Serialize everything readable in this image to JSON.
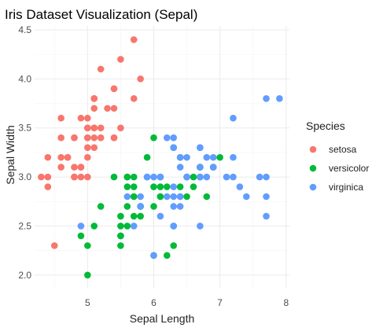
{
  "chart_data": {
    "type": "scatter",
    "title": "Iris Dataset Visualization (Sepal)",
    "xlabel": "Sepal Length",
    "ylabel": "Sepal Width",
    "xlim": [
      4.2,
      8.05
    ],
    "ylim": [
      1.87,
      4.54
    ],
    "x_ticks": [
      5,
      6,
      7,
      8
    ],
    "y_ticks": [
      2.0,
      2.5,
      3.0,
      3.5,
      4.0,
      4.5
    ],
    "y_tick_labels": [
      "2.0",
      "2.5",
      "3.0",
      "3.5",
      "4.0",
      "4.5"
    ],
    "x_tick_labels": [
      "5",
      "6",
      "7",
      "8"
    ],
    "grid": true,
    "legend": {
      "title": "Species",
      "placement": "right"
    },
    "series": [
      {
        "name": "setosa",
        "color": "#F8766D",
        "points": [
          [
            5.1,
            3.5
          ],
          [
            4.9,
            3.0
          ],
          [
            4.7,
            3.2
          ],
          [
            4.6,
            3.1
          ],
          [
            5.0,
            3.6
          ],
          [
            5.4,
            3.9
          ],
          [
            4.6,
            3.4
          ],
          [
            5.0,
            3.4
          ],
          [
            4.4,
            2.9
          ],
          [
            4.9,
            3.1
          ],
          [
            5.4,
            3.7
          ],
          [
            4.8,
            3.4
          ],
          [
            4.8,
            3.0
          ],
          [
            4.3,
            3.0
          ],
          [
            5.8,
            4.0
          ],
          [
            5.7,
            4.4
          ],
          [
            5.4,
            3.9
          ],
          [
            5.1,
            3.5
          ],
          [
            5.7,
            3.8
          ],
          [
            5.1,
            3.8
          ],
          [
            5.4,
            3.4
          ],
          [
            5.1,
            3.7
          ],
          [
            4.6,
            3.6
          ],
          [
            5.1,
            3.3
          ],
          [
            4.8,
            3.4
          ],
          [
            5.0,
            3.0
          ],
          [
            5.0,
            3.4
          ],
          [
            5.2,
            3.5
          ],
          [
            5.2,
            3.4
          ],
          [
            4.7,
            3.2
          ],
          [
            4.8,
            3.1
          ],
          [
            5.4,
            3.4
          ],
          [
            5.2,
            4.1
          ],
          [
            5.5,
            4.2
          ],
          [
            4.9,
            3.1
          ],
          [
            5.0,
            3.2
          ],
          [
            5.5,
            3.5
          ],
          [
            4.9,
            3.6
          ],
          [
            4.4,
            3.0
          ],
          [
            5.1,
            3.4
          ],
          [
            5.0,
            3.5
          ],
          [
            4.5,
            2.3
          ],
          [
            4.4,
            3.2
          ],
          [
            5.0,
            3.5
          ],
          [
            5.1,
            3.8
          ],
          [
            4.8,
            3.0
          ],
          [
            5.1,
            3.8
          ],
          [
            4.6,
            3.2
          ],
          [
            5.3,
            3.7
          ],
          [
            5.0,
            3.3
          ]
        ]
      },
      {
        "name": "versicolor",
        "color": "#00BA38",
        "points": [
          [
            7.0,
            3.2
          ],
          [
            6.4,
            3.2
          ],
          [
            6.9,
            3.1
          ],
          [
            5.5,
            2.3
          ],
          [
            6.5,
            2.8
          ],
          [
            5.7,
            2.8
          ],
          [
            6.3,
            3.3
          ],
          [
            4.9,
            2.4
          ],
          [
            6.6,
            2.9
          ],
          [
            5.2,
            2.7
          ],
          [
            5.0,
            2.0
          ],
          [
            5.9,
            3.0
          ],
          [
            6.0,
            2.2
          ],
          [
            6.1,
            2.9
          ],
          [
            5.6,
            2.9
          ],
          [
            6.7,
            3.1
          ],
          [
            5.6,
            3.0
          ],
          [
            5.8,
            2.7
          ],
          [
            6.2,
            2.2
          ],
          [
            5.6,
            2.5
          ],
          [
            5.9,
            3.2
          ],
          [
            6.1,
            2.8
          ],
          [
            6.3,
            2.5
          ],
          [
            6.1,
            2.8
          ],
          [
            6.4,
            2.9
          ],
          [
            6.6,
            3.0
          ],
          [
            6.8,
            2.8
          ],
          [
            6.7,
            3.0
          ],
          [
            6.0,
            2.9
          ],
          [
            5.7,
            2.6
          ],
          [
            5.5,
            2.4
          ],
          [
            5.5,
            2.4
          ],
          [
            5.8,
            2.7
          ],
          [
            6.0,
            2.7
          ],
          [
            5.4,
            3.0
          ],
          [
            6.0,
            3.4
          ],
          [
            6.7,
            3.1
          ],
          [
            6.3,
            2.3
          ],
          [
            5.6,
            3.0
          ],
          [
            5.5,
            2.5
          ],
          [
            5.5,
            2.6
          ],
          [
            6.1,
            3.0
          ],
          [
            5.8,
            2.6
          ],
          [
            5.0,
            2.3
          ],
          [
            5.6,
            2.7
          ],
          [
            5.7,
            3.0
          ],
          [
            5.7,
            2.9
          ],
          [
            6.2,
            2.9
          ],
          [
            5.1,
            2.5
          ],
          [
            5.7,
            2.8
          ]
        ]
      },
      {
        "name": "virginica",
        "color": "#619CFF",
        "points": [
          [
            6.3,
            3.3
          ],
          [
            5.8,
            2.7
          ],
          [
            7.1,
            3.0
          ],
          [
            6.3,
            2.9
          ],
          [
            6.5,
            3.0
          ],
          [
            7.6,
            3.0
          ],
          [
            4.9,
            2.5
          ],
          [
            7.3,
            2.9
          ],
          [
            6.7,
            2.5
          ],
          [
            7.2,
            3.6
          ],
          [
            6.5,
            3.2
          ],
          [
            6.4,
            2.7
          ],
          [
            6.8,
            3.0
          ],
          [
            5.7,
            2.5
          ],
          [
            5.8,
            2.8
          ],
          [
            6.4,
            3.2
          ],
          [
            6.5,
            3.0
          ],
          [
            7.7,
            3.8
          ],
          [
            7.7,
            2.6
          ],
          [
            6.0,
            2.2
          ],
          [
            6.9,
            3.2
          ],
          [
            5.6,
            2.8
          ],
          [
            7.7,
            2.8
          ],
          [
            6.3,
            2.7
          ],
          [
            6.7,
            3.3
          ],
          [
            7.2,
            3.2
          ],
          [
            6.2,
            2.8
          ],
          [
            6.1,
            3.0
          ],
          [
            6.4,
            2.8
          ],
          [
            7.2,
            3.0
          ],
          [
            7.4,
            2.8
          ],
          [
            7.9,
            3.8
          ],
          [
            6.4,
            2.8
          ],
          [
            6.3,
            2.8
          ],
          [
            6.1,
            2.6
          ],
          [
            7.7,
            3.0
          ],
          [
            6.3,
            3.4
          ],
          [
            6.4,
            3.1
          ],
          [
            6.0,
            3.0
          ],
          [
            6.9,
            3.1
          ],
          [
            6.7,
            3.1
          ],
          [
            6.9,
            3.1
          ],
          [
            5.8,
            2.7
          ],
          [
            6.8,
            3.2
          ],
          [
            6.7,
            3.3
          ],
          [
            6.7,
            3.0
          ],
          [
            6.3,
            2.5
          ],
          [
            6.5,
            3.0
          ],
          [
            6.2,
            3.4
          ],
          [
            5.9,
            3.0
          ]
        ]
      }
    ]
  }
}
